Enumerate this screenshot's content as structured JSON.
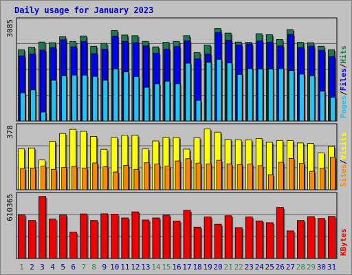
{
  "title": "Daily usage for January 2023",
  "colors": {
    "hits": "#1e7a4e",
    "files": "#0000ee",
    "pages": "#22c4f0",
    "visits": "#ffff00",
    "sites": "#ff8800",
    "kbytes": "#ee0000",
    "weekend_day": "#2e8b57",
    "weekday": "#0000aa",
    "plot_bg": "#c0c0c0",
    "grid": "#606060"
  },
  "chart_data": [
    {
      "type": "bar",
      "panel": "hits-files-pages",
      "categories": [
        "1",
        "2",
        "3",
        "4",
        "5",
        "6",
        "7",
        "8",
        "9",
        "10",
        "11",
        "12",
        "13",
        "14",
        "15",
        "16",
        "17",
        "18",
        "19",
        "20",
        "21",
        "22",
        "23",
        "24",
        "25",
        "26",
        "27",
        "28",
        "29",
        "30",
        "31"
      ],
      "max_label": "3085",
      "ylim": [
        0,
        3085
      ],
      "ylabel": [
        "Pages",
        "Files",
        "Hits"
      ],
      "series": [
        {
          "name": "Hits",
          "color": "#1e7a4e",
          "values": [
            2220,
            2300,
            2460,
            2440,
            2630,
            2480,
            2650,
            2330,
            2420,
            2820,
            2680,
            2660,
            2480,
            2310,
            2450,
            2480,
            2660,
            2130,
            2370,
            2880,
            2740,
            2460,
            2450,
            2720,
            2690,
            2540,
            2850,
            2450,
            2440,
            2330,
            2220
          ]
        },
        {
          "name": "Files",
          "color": "#0000ee",
          "values": [
            2030,
            2090,
            2210,
            2290,
            2530,
            2310,
            2480,
            2100,
            2240,
            2650,
            2480,
            2440,
            2340,
            2110,
            2240,
            2320,
            2500,
            1940,
            2090,
            2760,
            2520,
            2370,
            2400,
            2500,
            2460,
            2340,
            2700,
            2290,
            2330,
            2200,
            2010
          ]
        },
        {
          "name": "Pages",
          "color": "#22c4f0",
          "values": [
            880,
            970,
            280,
            1270,
            1410,
            1430,
            1430,
            1390,
            1270,
            1620,
            1530,
            1380,
            1050,
            1160,
            1240,
            1160,
            1800,
            640,
            1830,
            1920,
            1810,
            1450,
            1630,
            1620,
            1620,
            1630,
            1570,
            1460,
            1410,
            930,
            740
          ]
        }
      ]
    },
    {
      "type": "bar",
      "panel": "visits-sites",
      "categories": [
        "1",
        "2",
        "3",
        "4",
        "5",
        "6",
        "7",
        "8",
        "9",
        "10",
        "11",
        "12",
        "13",
        "14",
        "15",
        "16",
        "17",
        "18",
        "19",
        "20",
        "21",
        "22",
        "23",
        "24",
        "25",
        "26",
        "27",
        "28",
        "29",
        "30",
        "31"
      ],
      "max_label": "378",
      "ylim": [
        0,
        378
      ],
      "ylabel": [
        "Sites",
        "Visits"
      ],
      "series": [
        {
          "name": "Visits",
          "color": "#ffff00",
          "values": [
            250,
            255,
            182,
            295,
            344,
            369,
            357,
            326,
            247,
            319,
            333,
            333,
            250,
            298,
            320,
            320,
            248,
            317,
            371,
            352,
            307,
            304,
            304,
            312,
            290,
            301,
            301,
            286,
            283,
            226,
            265
          ]
        },
        {
          "name": "Sites",
          "color": "#ff8800",
          "values": [
            130,
            133,
            145,
            125,
            136,
            143,
            133,
            164,
            140,
            109,
            149,
            125,
            165,
            157,
            145,
            176,
            190,
            163,
            158,
            180,
            158,
            154,
            157,
            147,
            92,
            168,
            192,
            162,
            113,
            132,
            199
          ]
        }
      ]
    },
    {
      "type": "bar",
      "panel": "kbytes",
      "categories": [
        "1",
        "2",
        "3",
        "4",
        "5",
        "6",
        "7",
        "8",
        "9",
        "10",
        "11",
        "12",
        "13",
        "14",
        "15",
        "16",
        "17",
        "18",
        "19",
        "20",
        "21",
        "22",
        "23",
        "24",
        "25",
        "26",
        "27",
        "28",
        "29",
        "30",
        "31"
      ],
      "max_label": "610365",
      "ylim": [
        0,
        610365
      ],
      "ylabel": [
        "KBytes"
      ],
      "series": [
        {
          "name": "KBytes",
          "color": "#ee0000",
          "values": [
            430000,
            375000,
            612000,
            390000,
            430000,
            260000,
            440000,
            375000,
            441000,
            437000,
            400000,
            460000,
            380000,
            400000,
            428000,
            370000,
            475000,
            310000,
            410000,
            338000,
            422000,
            305000,
            410000,
            371000,
            353000,
            504000,
            272000,
            375000,
            413000,
            395000,
            415000
          ]
        }
      ]
    }
  ],
  "weekend_days": [
    "1",
    "7",
    "8",
    "14",
    "15",
    "21",
    "22",
    "28",
    "29"
  ]
}
